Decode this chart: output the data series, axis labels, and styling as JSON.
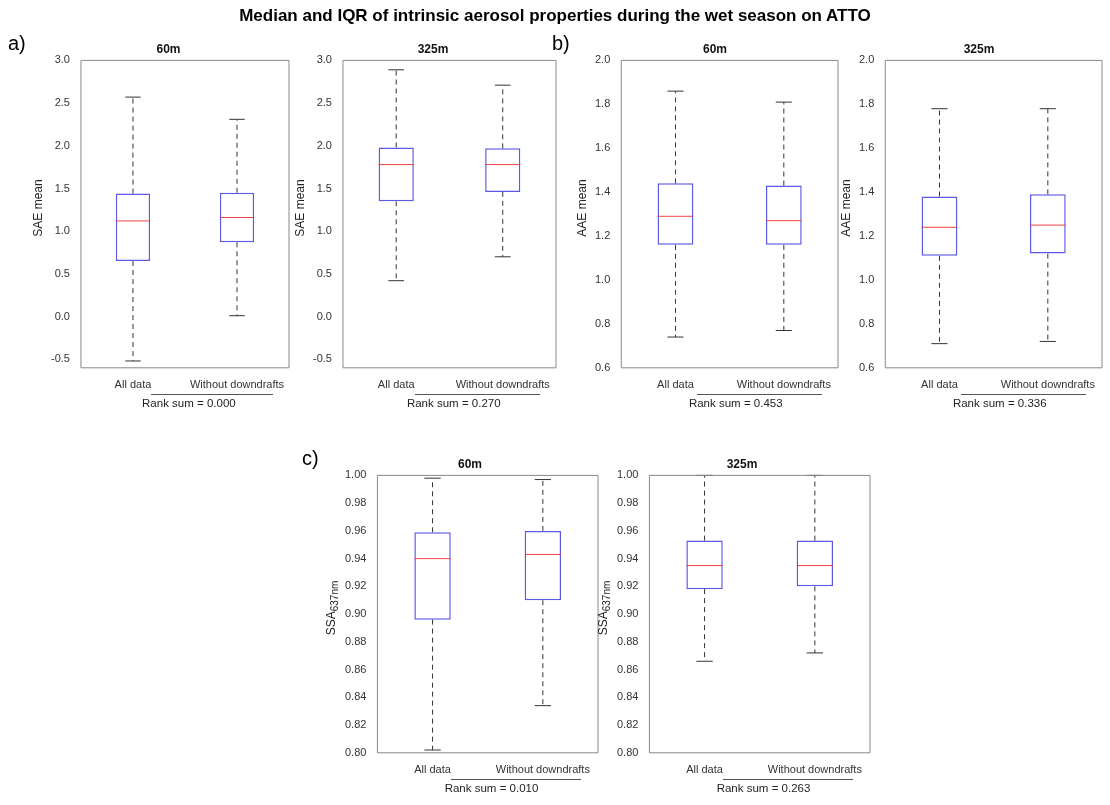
{
  "chart_data": [
    {
      "type": "box",
      "title": "60m",
      "ylabel": "SAE mean",
      "categories": [
        "All data",
        "Without downdrafts"
      ],
      "annotations": [
        "Median and IQR of intrinsic aerosol properties during the wet season on ATTO",
        "a)",
        "Rank sum = 0.000"
      ],
      "ylim": [
        -0.6,
        3.0
      ],
      "yticks": [
        {
          "value": -0.5,
          "label": "-0.5"
        },
        {
          "value": 0,
          "label": "0.0"
        },
        {
          "value": 0.5,
          "label": "0.5"
        },
        {
          "value": 1,
          "label": "1.0"
        },
        {
          "value": 1.5,
          "label": "1.5"
        },
        {
          "value": 2,
          "label": "2.0"
        },
        {
          "value": 2.5,
          "label": "2.5"
        },
        {
          "value": 3,
          "label": "3.0"
        }
      ],
      "series": [
        {
          "color": "#5a5ae6",
          "boxes": [
            {
              "low": -0.52,
              "q1": 0.65,
              "median": 1.12,
              "q3": 1.44,
              "high": 2.57
            },
            {
              "low": 0.01,
              "q1": 0.87,
              "median": 1.16,
              "q3": 1.45,
              "high": 2.31
            }
          ]
        }
      ]
    },
    {
      "type": "box",
      "title": "325m",
      "ylabel": "SAE mean",
      "categories": [
        "All data",
        "Without downdrafts"
      ],
      "annotations": [
        "Rank sum = 0.270"
      ],
      "ylim": [
        -0.6,
        3.0
      ],
      "yticks": [
        {
          "value": -0.5,
          "label": "-0.5"
        },
        {
          "value": 0,
          "label": "0.0"
        },
        {
          "value": 0.5,
          "label": "0.5"
        },
        {
          "value": 1,
          "label": "1.0"
        },
        {
          "value": 1.5,
          "label": "1.5"
        },
        {
          "value": 2,
          "label": "2.0"
        },
        {
          "value": 2.5,
          "label": "2.5"
        },
        {
          "value": 3,
          "label": "3.0"
        }
      ],
      "series": [
        {
          "color": "#5a5ae6",
          "boxes": [
            {
              "low": 0.42,
              "q1": 1.35,
              "median": 1.78,
              "q3": 1.98,
              "high": 2.89
            },
            {
              "low": 0.7,
              "q1": 1.46,
              "median": 1.78,
              "q3": 1.97,
              "high": 2.71
            }
          ]
        }
      ]
    },
    {
      "type": "box",
      "title": "60m",
      "ylabel": "AAE mean",
      "categories": [
        "All data",
        "Without downdrafts"
      ],
      "annotations": [
        "b)",
        "Rank sum = 0.453"
      ],
      "ylim": [
        0.6,
        2.0
      ],
      "yticks": [
        {
          "value": 0.6,
          "label": "0.6"
        },
        {
          "value": 0.8,
          "label": "0.8"
        },
        {
          "value": 1,
          "label": "1.0"
        },
        {
          "value": 1.2,
          "label": "1.2"
        },
        {
          "value": 1.4,
          "label": "1.4"
        },
        {
          "value": 1.6,
          "label": "1.6"
        },
        {
          "value": 1.8,
          "label": "1.8"
        },
        {
          "value": 2,
          "label": "2.0"
        }
      ],
      "series": [
        {
          "color": "#5a5ae6",
          "boxes": [
            {
              "low": 0.74,
              "q1": 1.16,
              "median": 1.29,
              "q3": 1.44,
              "high": 1.86
            },
            {
              "low": 0.77,
              "q1": 1.16,
              "median": 1.27,
              "q3": 1.43,
              "high": 1.81
            }
          ]
        }
      ]
    },
    {
      "type": "box",
      "title": "325m",
      "ylabel": "AAE mean",
      "categories": [
        "All data",
        "Without downdrafts"
      ],
      "annotations": [
        "Rank sum = 0.336"
      ],
      "ylim": [
        0.6,
        2.0
      ],
      "yticks": [
        {
          "value": 0.6,
          "label": "0.6"
        },
        {
          "value": 0.8,
          "label": "0.8"
        },
        {
          "value": 1,
          "label": "1.0"
        },
        {
          "value": 1.2,
          "label": "1.2"
        },
        {
          "value": 1.4,
          "label": "1.4"
        },
        {
          "value": 1.6,
          "label": "1.6"
        },
        {
          "value": 1.8,
          "label": "1.8"
        },
        {
          "value": 2,
          "label": "2.0"
        }
      ],
      "series": [
        {
          "color": "#5a5ae6",
          "boxes": [
            {
              "low": 0.71,
              "q1": 1.11,
              "median": 1.24,
              "q3": 1.38,
              "high": 1.78
            },
            {
              "low": 0.72,
              "q1": 1.12,
              "median": 1.25,
              "q3": 1.39,
              "high": 1.78
            }
          ]
        }
      ]
    },
    {
      "type": "box",
      "title": "60m",
      "ylabel": "SSA$_{637nm}$",
      "categories": [
        "All data",
        "Without downdrafts"
      ],
      "annotations": [
        "c)",
        "Rank sum = 0.010"
      ],
      "ylim": [
        0.8,
        1.0
      ],
      "yticks": [
        {
          "value": 0.8,
          "label": "0.80"
        },
        {
          "value": 0.82,
          "label": "0.82"
        },
        {
          "value": 0.84,
          "label": "0.84"
        },
        {
          "value": 0.86,
          "label": "0.86"
        },
        {
          "value": 0.88,
          "label": "0.88"
        },
        {
          "value": 0.9,
          "label": "0.90"
        },
        {
          "value": 0.92,
          "label": "0.92"
        },
        {
          "value": 0.94,
          "label": "0.94"
        },
        {
          "value": 0.96,
          "label": "0.96"
        },
        {
          "value": 0.98,
          "label": "0.98"
        },
        {
          "value": 1,
          "label": "1.00"
        }
      ],
      "series": [
        {
          "color": "#5a5ae6",
          "boxes": [
            {
              "low": 0.802,
              "q1": 0.896,
              "median": 0.94,
              "q3": 0.959,
              "high": 0.998
            },
            {
              "low": 0.834,
              "q1": 0.91,
              "median": 0.943,
              "q3": 0.96,
              "high": 0.997
            }
          ]
        }
      ]
    },
    {
      "type": "box",
      "title": "325m",
      "ylabel": "SSA$_{637nm}$",
      "categories": [
        "All data",
        "Without downdrafts"
      ],
      "annotations": [
        "Rank sum = 0.263"
      ],
      "ylim": [
        0.8,
        1.0
      ],
      "yticks": [
        {
          "value": 0.8,
          "label": "0.80"
        },
        {
          "value": 0.82,
          "label": "0.82"
        },
        {
          "value": 0.84,
          "label": "0.84"
        },
        {
          "value": 0.86,
          "label": "0.86"
        },
        {
          "value": 0.88,
          "label": "0.88"
        },
        {
          "value": 0.9,
          "label": "0.90"
        },
        {
          "value": 0.92,
          "label": "0.92"
        },
        {
          "value": 0.94,
          "label": "0.94"
        },
        {
          "value": 0.96,
          "label": "0.96"
        },
        {
          "value": 0.98,
          "label": "0.98"
        },
        {
          "value": 1,
          "label": "1.00"
        }
      ],
      "series": [
        {
          "color": "#5a5ae6",
          "boxes": [
            {
              "low": 0.866,
              "q1": 0.918,
              "median": 0.935,
              "q3": 0.953,
              "high": 1.0
            },
            {
              "low": 0.872,
              "q1": 0.92,
              "median": 0.935,
              "q3": 0.953,
              "high": 1.0
            }
          ]
        }
      ]
    }
  ]
}
